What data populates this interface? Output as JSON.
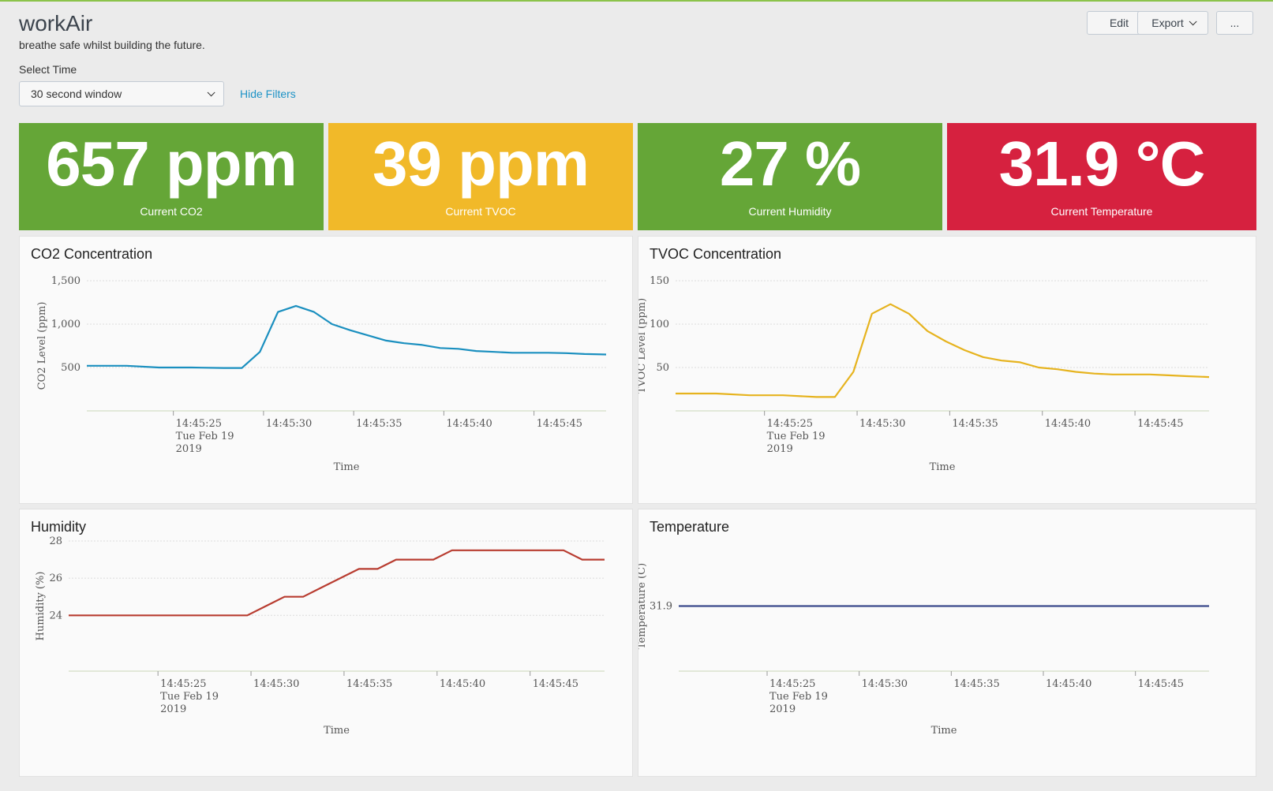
{
  "header": {
    "title": "workAir",
    "description": "breathe safe whilst building the future.",
    "edit_label": "Edit",
    "export_label": "Export",
    "more_label": "..."
  },
  "filters": {
    "label": "Select Time",
    "selected": "30 second window",
    "hide_label": "Hide Filters"
  },
  "tiles": [
    {
      "value": "657 ppm",
      "label": "Current CO2",
      "color": "#65a637"
    },
    {
      "value": "39 ppm",
      "label": "Current TVOC",
      "color": "#f1b929"
    },
    {
      "value": "27 %",
      "label": "Current Humidity",
      "color": "#65a637"
    },
    {
      "value": "31.9 °C",
      "label": "Current Temperature",
      "color": "#d6213f"
    }
  ],
  "panels": {
    "co2": {
      "title": "CO2 Concentration"
    },
    "tvoc": {
      "title": "TVOC Concentration"
    },
    "humidity": {
      "title": "Humidity"
    },
    "temperature": {
      "title": "Temperature"
    }
  },
  "chart_data": [
    {
      "id": "co2",
      "type": "line",
      "color": "#1a8fbf",
      "ylabel": "CO2 Level (ppm)",
      "xlabel": "Time",
      "ylim": [
        0,
        1500
      ],
      "yticks": [
        {
          "v": 500,
          "label": "500"
        },
        {
          "v": 1000,
          "label": "1,000"
        },
        {
          "v": 1500,
          "label": "1,500"
        }
      ],
      "xlim": [
        20.2,
        49.0
      ],
      "xticks": [
        {
          "v": 25,
          "lines": [
            "14:45:25",
            "Tue Feb 19",
            "2019"
          ]
        },
        {
          "v": 30,
          "lines": [
            "14:45:30"
          ]
        },
        {
          "v": 35,
          "lines": [
            "14:45:35"
          ]
        },
        {
          "v": 40,
          "lines": [
            "14:45:40"
          ]
        },
        {
          "v": 45,
          "lines": [
            "14:45:45"
          ]
        }
      ],
      "x": [
        20.2,
        22.4,
        24.2,
        26.0,
        27.8,
        28.8,
        29.8,
        30.8,
        31.8,
        32.8,
        33.8,
        34.8,
        35.8,
        36.8,
        37.8,
        38.8,
        39.8,
        40.8,
        41.8,
        42.8,
        43.8,
        44.8,
        45.8,
        46.8,
        47.8,
        49.0
      ],
      "values": [
        520,
        520,
        500,
        500,
        495,
        495,
        680,
        1140,
        1210,
        1140,
        1000,
        930,
        870,
        810,
        780,
        760,
        725,
        715,
        690,
        680,
        670,
        670,
        670,
        665,
        655,
        650
      ]
    },
    {
      "id": "tvoc",
      "type": "line",
      "color": "#e6b31e",
      "ylabel": "TVOC Level (ppm)",
      "xlabel": "Time",
      "ylim": [
        0,
        150
      ],
      "yticks": [
        {
          "v": 50,
          "label": "50"
        },
        {
          "v": 100,
          "label": "100"
        },
        {
          "v": 150,
          "label": "150"
        }
      ],
      "xlim": [
        20.2,
        49.0
      ],
      "xticks": [
        {
          "v": 25,
          "lines": [
            "14:45:25",
            "Tue Feb 19",
            "2019"
          ]
        },
        {
          "v": 30,
          "lines": [
            "14:45:30"
          ]
        },
        {
          "v": 35,
          "lines": [
            "14:45:35"
          ]
        },
        {
          "v": 40,
          "lines": [
            "14:45:40"
          ]
        },
        {
          "v": 45,
          "lines": [
            "14:45:45"
          ]
        }
      ],
      "x": [
        20.2,
        22.4,
        24.2,
        26.0,
        27.8,
        28.8,
        29.8,
        30.8,
        31.8,
        32.8,
        33.8,
        34.8,
        35.8,
        36.8,
        37.8,
        38.8,
        39.8,
        40.8,
        41.8,
        42.8,
        43.8,
        44.8,
        45.8,
        46.8,
        47.8,
        49.0
      ],
      "values": [
        20,
        20,
        18,
        18,
        16,
        16,
        45,
        112,
        123,
        112,
        92,
        80,
        70,
        62,
        58,
        56,
        50,
        48,
        45,
        43,
        42,
        42,
        42,
        41,
        40,
        39
      ]
    },
    {
      "id": "humidity",
      "type": "line",
      "color": "#b83c30",
      "ylabel": "Humidity (%)",
      "xlabel": "Time",
      "ylim": [
        21,
        28
      ],
      "yticks": [
        {
          "v": 24,
          "label": "24"
        },
        {
          "v": 26,
          "label": "26"
        },
        {
          "v": 28,
          "label": "28"
        }
      ],
      "xlim": [
        20.2,
        49.0
      ],
      "xticks": [
        {
          "v": 25,
          "lines": [
            "14:45:25",
            "Tue Feb 19",
            "2019"
          ]
        },
        {
          "v": 30,
          "lines": [
            "14:45:30"
          ]
        },
        {
          "v": 35,
          "lines": [
            "14:45:35"
          ]
        },
        {
          "v": 40,
          "lines": [
            "14:45:40"
          ]
        },
        {
          "v": 45,
          "lines": [
            "14:45:45"
          ]
        }
      ],
      "x": [
        20.2,
        29.8,
        30.8,
        31.8,
        32.8,
        33.8,
        34.8,
        35.8,
        36.8,
        37.8,
        38.8,
        39.8,
        40.8,
        41.8,
        42.8,
        43.8,
        44.8,
        45.8,
        46.8,
        47.8,
        49.0
      ],
      "values": [
        24,
        24,
        24.5,
        25,
        25,
        25.5,
        26,
        26.5,
        26.5,
        27,
        27,
        27,
        27.5,
        27.5,
        27.5,
        27.5,
        27.5,
        27.5,
        27.5,
        27,
        27
      ]
    },
    {
      "id": "temperature",
      "type": "line",
      "color": "#3b4a8c",
      "ylabel": "Temperature (C)",
      "xlabel": "Time",
      "ylim": [
        31.6,
        32.2
      ],
      "yticks": [
        {
          "v": 31.9,
          "label": "31.9"
        }
      ],
      "xlim": [
        20.2,
        49.0
      ],
      "xticks": [
        {
          "v": 25,
          "lines": [
            "14:45:25",
            "Tue Feb 19",
            "2019"
          ]
        },
        {
          "v": 30,
          "lines": [
            "14:45:30"
          ]
        },
        {
          "v": 35,
          "lines": [
            "14:45:35"
          ]
        },
        {
          "v": 40,
          "lines": [
            "14:45:40"
          ]
        },
        {
          "v": 45,
          "lines": [
            "14:45:45"
          ]
        }
      ],
      "x": [
        20.2,
        49.0
      ],
      "values": [
        31.9,
        31.9
      ]
    }
  ]
}
